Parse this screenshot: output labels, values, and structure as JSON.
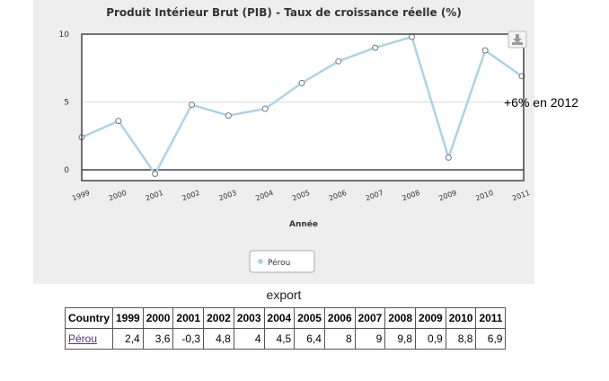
{
  "chart_data": {
    "type": "line",
    "title": "Produit Intérieur Brut (PIB) - Taux de croissance réelle (%)",
    "xlabel": "Année",
    "ylabel": "",
    "categories": [
      "1999",
      "2000",
      "2001",
      "2002",
      "2003",
      "2004",
      "2005",
      "2006",
      "2007",
      "2008",
      "2009",
      "2010",
      "2011"
    ],
    "series": [
      {
        "name": "Pérou",
        "values": [
          2.4,
          3.6,
          -0.3,
          4.8,
          4,
          4.5,
          6.4,
          8,
          9,
          9.8,
          0.9,
          8.8,
          6.9
        ]
      }
    ],
    "ylim": [
      -1,
      10
    ],
    "yticks": [
      0,
      5,
      10
    ],
    "grid": true,
    "legend": "bottom-center",
    "colors": {
      "series": "#aad4ea",
      "marker_fill": "#ffffff",
      "marker_stroke": "#777777",
      "plot_bg": "#ffffff",
      "panel_bg": "#eeeeee",
      "grid": "#dddddd",
      "axis": "#444444"
    }
  },
  "annotation": "+6% en 2012",
  "export_label": "export",
  "download_icon": "download-icon",
  "table": {
    "header_label": "Country",
    "years": [
      "1999",
      "2000",
      "2001",
      "2002",
      "2003",
      "2004",
      "2005",
      "2006",
      "2007",
      "2008",
      "2009",
      "2010",
      "2011"
    ],
    "rows": [
      {
        "country": "Pérou",
        "values": [
          "2,4",
          "3,6",
          "-0,3",
          "4,8",
          "4",
          "4,5",
          "6,4",
          "8",
          "9",
          "9,8",
          "0,9",
          "8,8",
          "6,9"
        ]
      }
    ]
  }
}
